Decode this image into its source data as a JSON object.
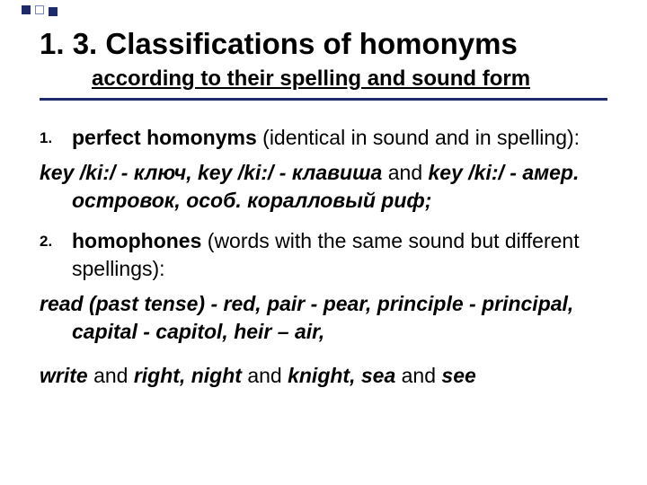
{
  "colors": {
    "text": "#000000",
    "background": "#ffffff",
    "accent": "#1f2a6b",
    "square_border": "#7784c7"
  },
  "typography": {
    "title_pt": 33,
    "subtitle_pt": 24,
    "body_pt": 23,
    "num_pt": 17,
    "family": "Arial"
  },
  "title": "1. 3. Classifications of homonyms",
  "subtitle": "according to their spelling and sound form",
  "items": [
    {
      "num": "1.",
      "lead": "perfect homonyms ",
      "rest": "(identical in sound and in spelling):",
      "example_parts": [
        {
          "t": "key /ki:/ - ключ, key /ki:/ - клавиша",
          "s": "bi"
        },
        {
          "t": " and ",
          "s": "plain"
        },
        {
          "t": "key /ki:/ - амер. островок, особ. коралловый риф;",
          "s": "bi"
        }
      ]
    },
    {
      "num": "2.",
      "lead": "homophones ",
      "rest": "(words with the same sound but different spellings):",
      "example_parts": [
        {
          "t": "read (past tense) - red, pair - pear, principle - principal, capital - capitol, heir – air,",
          "s": "bi"
        }
      ],
      "example2_parts": [
        {
          "t": "write",
          "s": "bi"
        },
        {
          "t": " and ",
          "s": "plain"
        },
        {
          "t": "right",
          "s": "bi"
        },
        {
          "t": ", ",
          "s": "bi"
        },
        {
          "t": "night",
          "s": "bi"
        },
        {
          "t": " and ",
          "s": "plain"
        },
        {
          "t": "knight",
          "s": "bi"
        },
        {
          "t": ", ",
          "s": "bi"
        },
        {
          "t": "sea",
          "s": "bi"
        },
        {
          "t": " and ",
          "s": "plain"
        },
        {
          "t": "see",
          "s": "bi"
        }
      ]
    }
  ]
}
